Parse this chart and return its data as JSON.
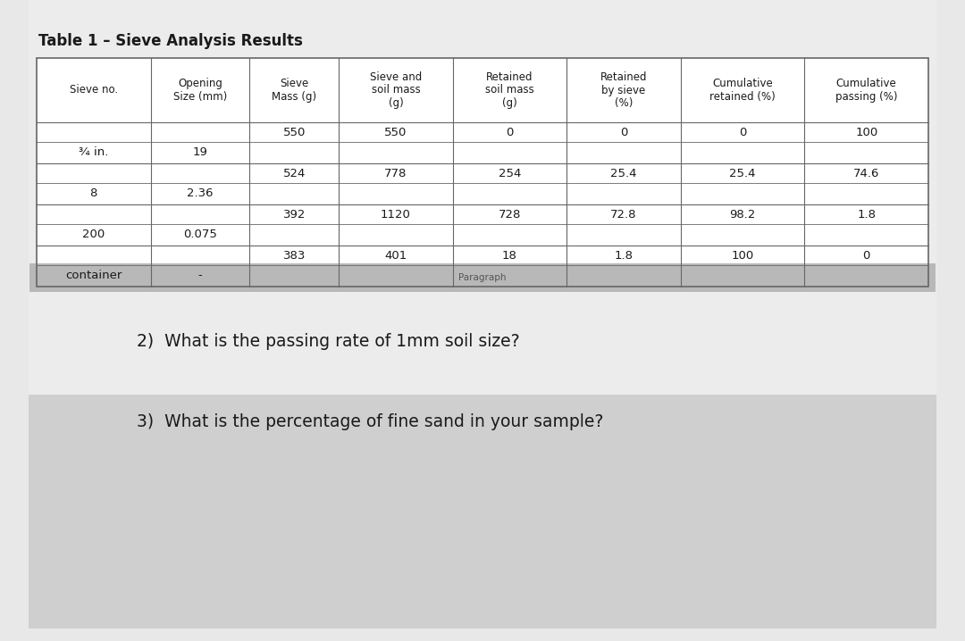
{
  "title": "Table 1 – Sieve Analysis Results",
  "col_headers": [
    "Sieve no.",
    "Opening\nSize (mm)",
    "Sieve\nMass (g)",
    "Sieve and\nsoil mass\n(g)",
    "Retained\nsoil mass\n(g)",
    "Retained\nby sieve\n(%)",
    "Cumulative\nretained (%)",
    "Cumulative\npassing (%)"
  ],
  "rows": [
    {
      "sieve_no": "¾ in.",
      "opening": "19",
      "sieve_mass": "550",
      "sieve_soil": "550",
      "retained_soil": "0",
      "retained_pct": "0",
      "cum_retained": "0",
      "cum_passing": "100"
    },
    {
      "sieve_no": "8",
      "opening": "2.36",
      "sieve_mass": "524",
      "sieve_soil": "778",
      "retained_soil": "254",
      "retained_pct": "25.4",
      "cum_retained": "25.4",
      "cum_passing": "74.6"
    },
    {
      "sieve_no": "200",
      "opening": "0.075",
      "sieve_mass": "392",
      "sieve_soil": "1120",
      "retained_soil": "728",
      "retained_pct": "72.8",
      "cum_retained": "98.2",
      "cum_passing": "1.8"
    },
    {
      "sieve_no": "container",
      "opening": "-",
      "sieve_mass": "383",
      "sieve_soil": "401",
      "retained_soil": "18",
      "retained_pct": "1.8",
      "cum_retained": "100",
      "cum_passing": "0"
    }
  ],
  "question2": "2)  What is the passing rate of 1mm soil size?",
  "question3": "3)  What is the percentage of fine sand in your sample?",
  "paragraph_label": "Paragraph",
  "bg_outer": "#e8e8e8",
  "bg_top_panel": "#ececec",
  "bg_bottom_panel": "#d0cfcf",
  "table_bg": "#ffffff",
  "text_color": "#1a1a1a",
  "border_color": "#666666",
  "title_fontsize": 12,
  "header_fontsize": 8.5,
  "cell_fontsize": 9.5,
  "question_fontsize": 13.5,
  "toolbar_fontsize": 7.5,
  "toolbar_color": "#b8b8b8",
  "toolbar_text_color": "#555555"
}
